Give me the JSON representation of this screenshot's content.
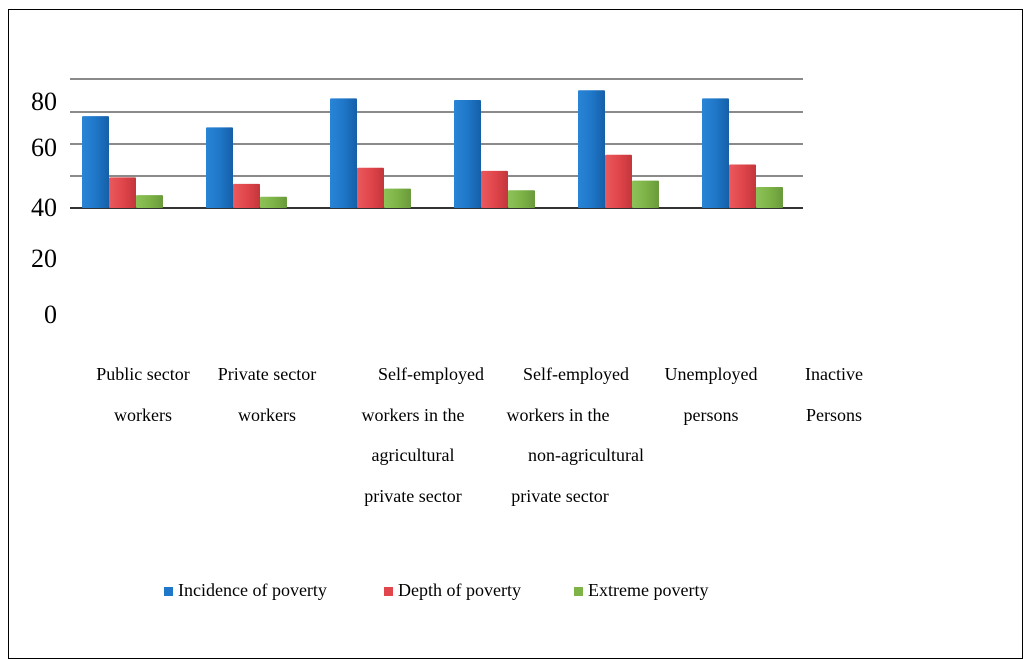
{
  "chart_data": {
    "type": "bar",
    "y_tick_labels": [
      "80",
      "60",
      "40",
      "20",
      "0"
    ],
    "categories": [
      [
        "Public sector",
        "workers"
      ],
      [
        "Private sector",
        "workers"
      ],
      [
        "Self-employed",
        "workers in the",
        "agricultural",
        "private sector"
      ],
      [
        "Self-employed",
        "workers in the",
        "non-agricultural",
        "private sector"
      ],
      [
        "Unemployed",
        "persons"
      ],
      [
        "Inactive",
        "Persons"
      ]
    ],
    "series": [
      {
        "name": "Incidence of poverty",
        "color": "#1f77c9",
        "values": [
          57,
          50,
          68,
          67,
          73,
          68
        ]
      },
      {
        "name": "Depth of poverty",
        "color": "#e0464b",
        "values": [
          19,
          15,
          25,
          23,
          33,
          27
        ]
      },
      {
        "name": "Extreme poverty",
        "color": "#7db347",
        "values": [
          8,
          7,
          12,
          11,
          17,
          13
        ]
      }
    ],
    "grid": true,
    "legend": "bottom"
  }
}
